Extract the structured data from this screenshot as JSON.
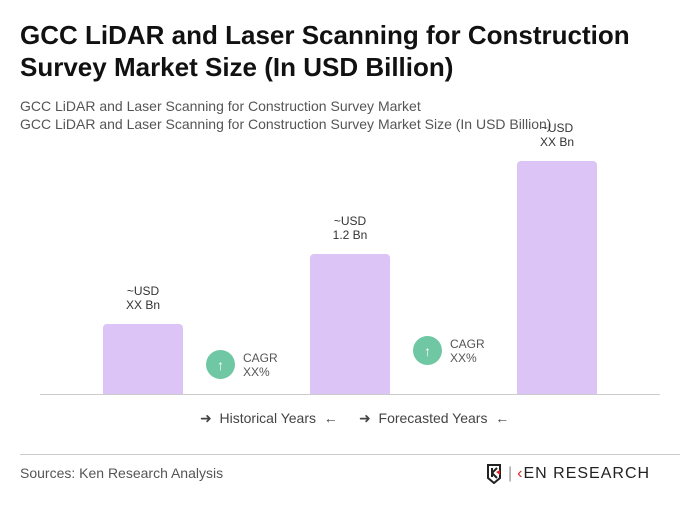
{
  "title": "GCC LiDAR and Laser Scanning for Construction Survey Market Size (In USD Billion)",
  "subtitle1": "GCC LiDAR and Laser Scanning for Construction Survey Market",
  "subtitle2": "GCC LiDAR and Laser Scanning for Construction Survey Market Size (In USD Billion)",
  "chart_data": {
    "type": "bar",
    "values": [
      0.6,
      1.2,
      2.0
    ],
    "labels": [
      [
        "~USD",
        "XX Bn"
      ],
      [
        "~USD",
        "1.2 Bn"
      ],
      [
        "~USD",
        "XX Bn"
      ]
    ],
    "cagr": [
      [
        "CAGR",
        "XX%"
      ],
      [
        "CAGR",
        "XX%"
      ]
    ],
    "legend": [
      "Historical Years",
      "Forecasted Years"
    ],
    "bar_color": "#dcc4f7",
    "cagr_color": "#6fc7a3"
  },
  "source": "Sources: Ken Research Analysis",
  "logo": "KEN RESEARCH"
}
